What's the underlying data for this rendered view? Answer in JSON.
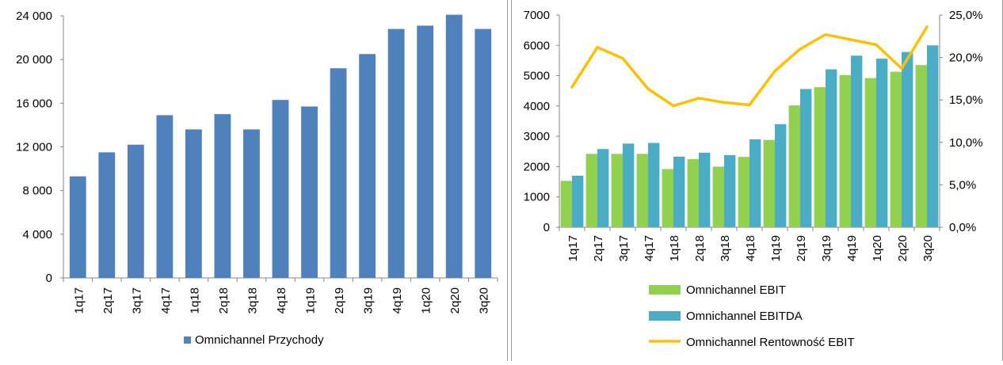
{
  "chart_data": [
    {
      "type": "bar",
      "categories": [
        "1q17",
        "2q17",
        "3q17",
        "4q17",
        "1q18",
        "2q18",
        "3q18",
        "4q18",
        "1q19",
        "2q19",
        "3q19",
        "4q19",
        "1q20",
        "2q20",
        "3q20"
      ],
      "series": [
        {
          "name": "Omnichannel Przychody",
          "values": [
            9300,
            11500,
            12200,
            14900,
            13600,
            15000,
            13600,
            16300,
            15700,
            19200,
            20500,
            22800,
            23100,
            24100,
            22800
          ],
          "color": "#4f81bd"
        }
      ],
      "ylim": [
        0,
        24000
      ],
      "yticks": [
        0,
        4000,
        8000,
        12000,
        16000,
        20000,
        24000
      ],
      "ytick_labels": [
        "0",
        "4 000",
        "8 000",
        "12 000",
        "16 000",
        "20 000",
        "24 000"
      ],
      "grid": false,
      "legend": "bottom",
      "title": "",
      "xlabel": "",
      "ylabel": ""
    },
    {
      "type": "bar",
      "categories": [
        "1q17",
        "2q17",
        "3q17",
        "4q17",
        "1q18",
        "2q18",
        "3q18",
        "4q18",
        "1q19",
        "2q19",
        "3q19",
        "4q19",
        "1q20",
        "2q20",
        "3q20"
      ],
      "series": [
        {
          "name": "Omnichannel EBIT",
          "type": "bar",
          "axis": "left",
          "values": [
            1530,
            2420,
            2420,
            2420,
            1920,
            2250,
            2000,
            2320,
            2880,
            4020,
            4620,
            5020,
            4920,
            5130,
            5350
          ],
          "color": "#92d050"
        },
        {
          "name": "Omnichannel EBITDA",
          "type": "bar",
          "axis": "left",
          "values": [
            1700,
            2580,
            2760,
            2780,
            2330,
            2460,
            2380,
            2900,
            3400,
            4560,
            5210,
            5660,
            5560,
            5780,
            6000
          ],
          "color": "#4bacc6"
        },
        {
          "name": "Omnichannel Rentowność EBIT",
          "type": "line",
          "axis": "right",
          "values": [
            16.5,
            21.2,
            19.9,
            16.3,
            14.3,
            15.2,
            14.7,
            14.4,
            18.4,
            21.0,
            22.7,
            22.1,
            21.5,
            18.7,
            23.6
          ],
          "color": "#ffc000"
        }
      ],
      "ylim": [
        0,
        7000
      ],
      "yticks": [
        0,
        1000,
        2000,
        3000,
        4000,
        5000,
        6000,
        7000
      ],
      "ytick_labels": [
        "0",
        "1000",
        "2000",
        "3000",
        "4000",
        "5000",
        "6000",
        "7000"
      ],
      "y2lim": [
        0,
        25
      ],
      "y2ticks": [
        0,
        5,
        10,
        15,
        20,
        25
      ],
      "y2tick_labels": [
        "0,0%",
        "5,0%",
        "10,0%",
        "15,0%",
        "20,0%",
        "25,0%"
      ],
      "grid": false,
      "legend": "bottom",
      "title": "",
      "xlabel": "",
      "ylabel": ""
    }
  ],
  "colors": {
    "axis": "#868686",
    "text": "#000000"
  }
}
